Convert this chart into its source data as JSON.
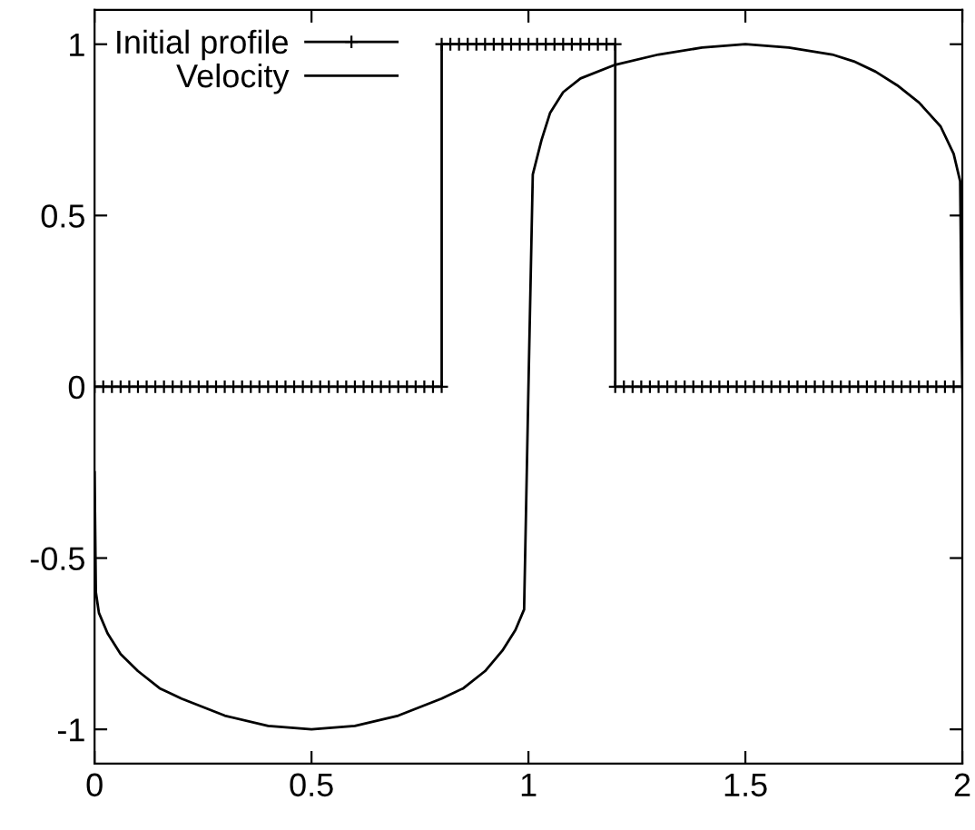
{
  "chart_data": {
    "type": "line",
    "xlim": [
      0,
      2
    ],
    "ylim": [
      -1.1,
      1.1
    ],
    "xticks": [
      0,
      0.5,
      1,
      1.5,
      2
    ],
    "yticks": [
      -1,
      -0.5,
      0,
      0.5,
      1
    ],
    "grid": false,
    "legend": "top left",
    "series": [
      {
        "name": "Initial profile",
        "color": "#000000",
        "marker": "cross",
        "line_style": "solid",
        "x": [
          0,
          0.02,
          0.04,
          0.06,
          0.08,
          0.1,
          0.12,
          0.14,
          0.16,
          0.18,
          0.2,
          0.22,
          0.24,
          0.26,
          0.28,
          0.3,
          0.32,
          0.34,
          0.36,
          0.38,
          0.4,
          0.42,
          0.44,
          0.46,
          0.48,
          0.5,
          0.52,
          0.54,
          0.56,
          0.58,
          0.6,
          0.62,
          0.64,
          0.66,
          0.68,
          0.7,
          0.72,
          0.74,
          0.76,
          0.78,
          0.8,
          0.8,
          0.82,
          0.84,
          0.86,
          0.88,
          0.9,
          0.92,
          0.94,
          0.96,
          0.98,
          1,
          1.02,
          1.04,
          1.06,
          1.08,
          1.1,
          1.12,
          1.14,
          1.16,
          1.18,
          1.2,
          1.2,
          1.22,
          1.24,
          1.26,
          1.28,
          1.3,
          1.32,
          1.34,
          1.36,
          1.38,
          1.4,
          1.42,
          1.44,
          1.46,
          1.48,
          1.5,
          1.52,
          1.54,
          1.56,
          1.58,
          1.6,
          1.62,
          1.64,
          1.66,
          1.68,
          1.7,
          1.72,
          1.74,
          1.76,
          1.78,
          1.8,
          1.82,
          1.84,
          1.86,
          1.88,
          1.9,
          1.92,
          1.94,
          1.96,
          1.98,
          2
        ],
        "values": [
          0,
          0,
          0,
          0,
          0,
          0,
          0,
          0,
          0,
          0,
          0,
          0,
          0,
          0,
          0,
          0,
          0,
          0,
          0,
          0,
          0,
          0,
          0,
          0,
          0,
          0,
          0,
          0,
          0,
          0,
          0,
          0,
          0,
          0,
          0,
          0,
          0,
          0,
          0,
          0,
          0,
          1,
          1,
          1,
          1,
          1,
          1,
          1,
          1,
          1,
          1,
          1,
          1,
          1,
          1,
          1,
          1,
          1,
          1,
          1,
          1,
          1,
          0,
          0,
          0,
          0,
          0,
          0,
          0,
          0,
          0,
          0,
          0,
          0,
          0,
          0,
          0,
          0,
          0,
          0,
          0,
          0,
          0,
          0,
          0,
          0,
          0,
          0,
          0,
          0,
          0,
          0,
          0,
          0,
          0,
          0,
          0,
          0,
          0,
          0,
          0,
          0,
          0
        ]
      },
      {
        "name": "Velocity",
        "color": "#000000",
        "marker": "none",
        "line_style": "solid",
        "x": [
          0,
          0.003,
          0.01,
          0.03,
          0.06,
          0.1,
          0.15,
          0.2,
          0.3,
          0.4,
          0.5,
          0.6,
          0.7,
          0.8,
          0.85,
          0.9,
          0.94,
          0.97,
          0.99,
          1,
          1.01,
          1.03,
          1.05,
          1.08,
          1.12,
          1.2,
          1.3,
          1.4,
          1.5,
          1.6,
          1.7,
          1.75,
          1.8,
          1.85,
          1.9,
          1.95,
          1.98,
          1.995,
          2
        ],
        "values": [
          -0.25,
          -0.6,
          -0.66,
          -0.72,
          -0.78,
          -0.83,
          -0.88,
          -0.91,
          -0.96,
          -0.99,
          -1,
          -0.99,
          -0.96,
          -0.91,
          -0.88,
          -0.83,
          -0.77,
          -0.71,
          -0.65,
          0,
          0.62,
          0.72,
          0.8,
          0.86,
          0.9,
          0.94,
          0.97,
          0.99,
          1,
          0.99,
          0.97,
          0.95,
          0.92,
          0.88,
          0.83,
          0.76,
          0.68,
          0.6,
          0
        ]
      }
    ]
  }
}
